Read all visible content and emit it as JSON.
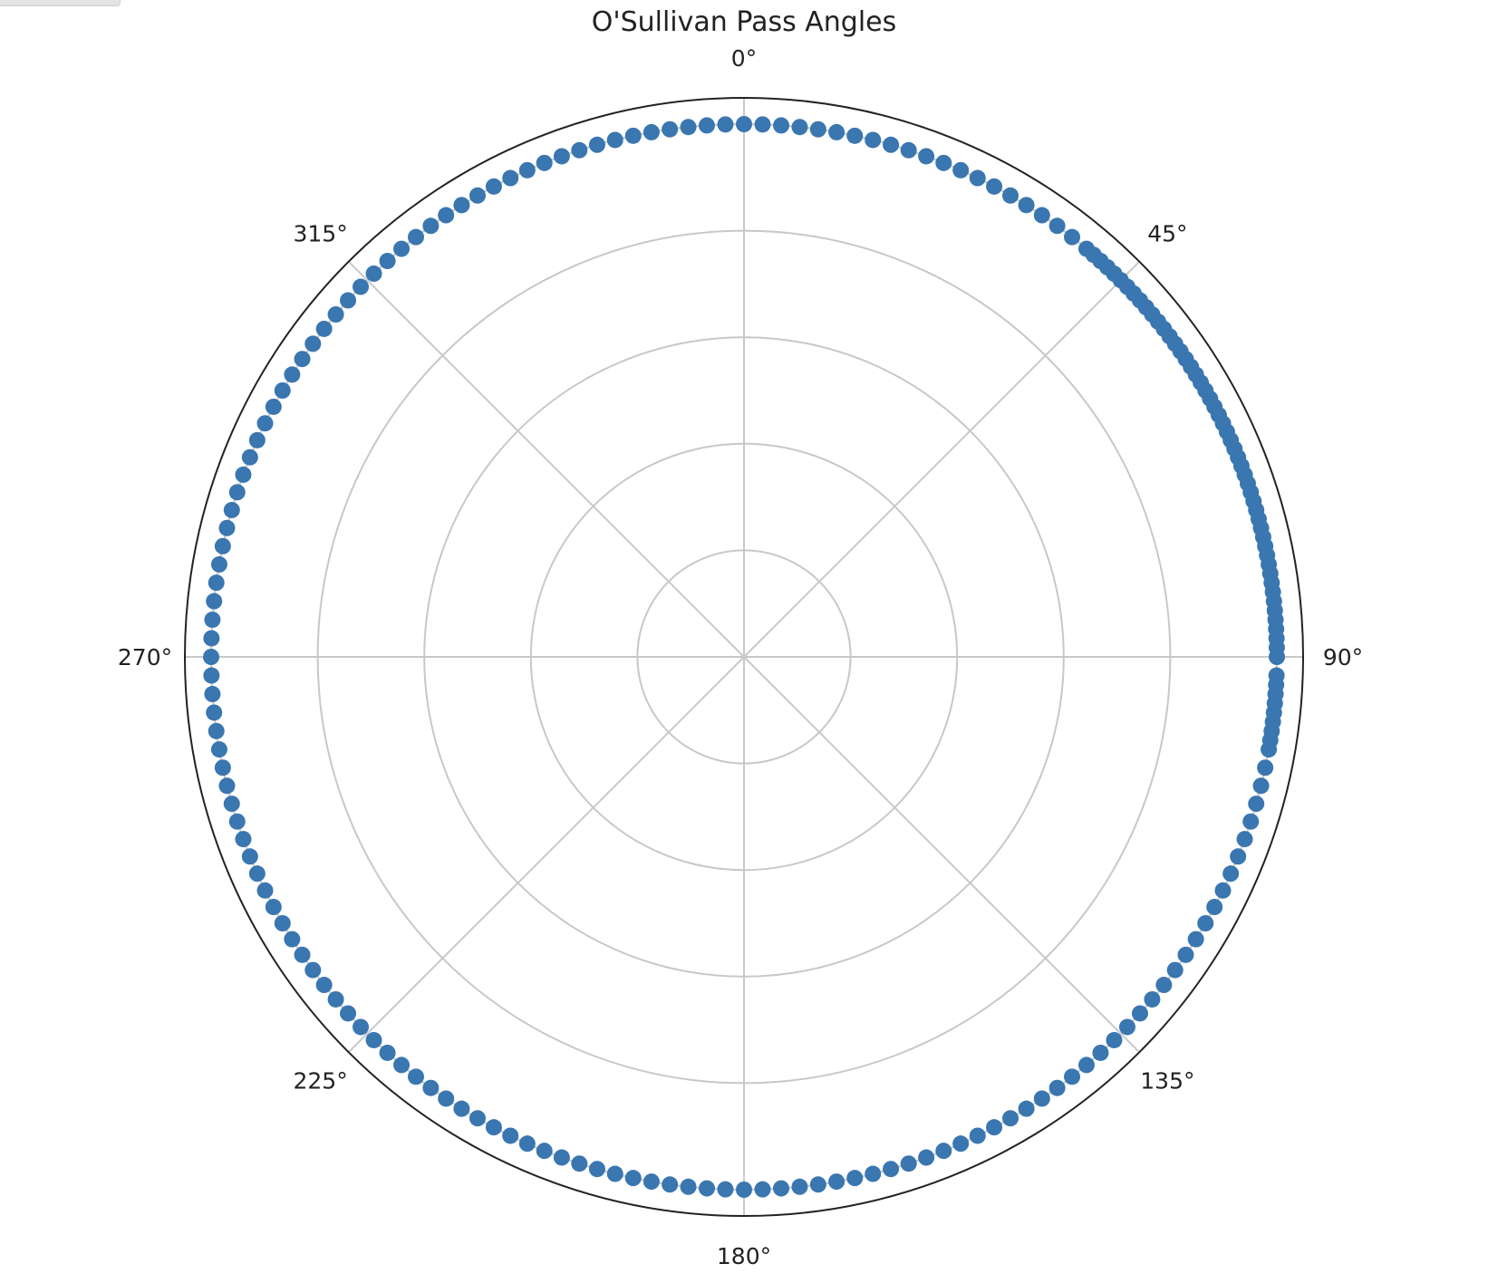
{
  "chart_data": {
    "type": "scatter",
    "projection": "polar",
    "title": "O'Sullivan Pass Angles",
    "theta_zero_location": "N",
    "theta_direction": "clockwise",
    "angle_tick_labels": [
      "0°",
      "45°",
      "90°",
      "135°",
      "180°",
      "225°",
      "270°",
      "315°"
    ],
    "radial_grid_count": 5,
    "radius_tick_labels": [],
    "grid": true,
    "marker_color": "#3a76b0",
    "series": [
      {
        "r": 1,
        "theta_deg": [
          0,
          2,
          4,
          6,
          8,
          10,
          12,
          14,
          16,
          18,
          20,
          22,
          24,
          26,
          28,
          30,
          32,
          34,
          36,
          38,
          40,
          41,
          42,
          43,
          44,
          45,
          46,
          47,
          48,
          49,
          50,
          51,
          52,
          53,
          54,
          55,
          56,
          57,
          58,
          59,
          60,
          61,
          62,
          63,
          64,
          65,
          66,
          67,
          68,
          69,
          70,
          71,
          72,
          73,
          74,
          75,
          76,
          77,
          78,
          79,
          80,
          81,
          82,
          83,
          84,
          85,
          86,
          87,
          88,
          89,
          90,
          92,
          93,
          94,
          95,
          96,
          97,
          98,
          99,
          100,
          102,
          104,
          106,
          108,
          110,
          112,
          114,
          116,
          118,
          120,
          122,
          124,
          126,
          128,
          130,
          132,
          134,
          136,
          138,
          140,
          142,
          144,
          146,
          148,
          150,
          152,
          154,
          156,
          158,
          160,
          162,
          164,
          166,
          168,
          170,
          172,
          174,
          176,
          178,
          180,
          182,
          184,
          186,
          188,
          190,
          192,
          194,
          196,
          198,
          200,
          202,
          204,
          206,
          208,
          210,
          212,
          214,
          216,
          218,
          220,
          222,
          224,
          226,
          228,
          230,
          232,
          234,
          236,
          238,
          240,
          242,
          244,
          246,
          248,
          250,
          252,
          254,
          256,
          258,
          260,
          262,
          264,
          266,
          268,
          270,
          272,
          274,
          276,
          278,
          280,
          282,
          284,
          286,
          288,
          290,
          292,
          294,
          296,
          298,
          300,
          302,
          304,
          306,
          308,
          310,
          312,
          314,
          316,
          318,
          320,
          322,
          324,
          326,
          328,
          330,
          332,
          334,
          336,
          338,
          340,
          342,
          344,
          346,
          348,
          350,
          352,
          354,
          356,
          358
        ]
      }
    ]
  }
}
